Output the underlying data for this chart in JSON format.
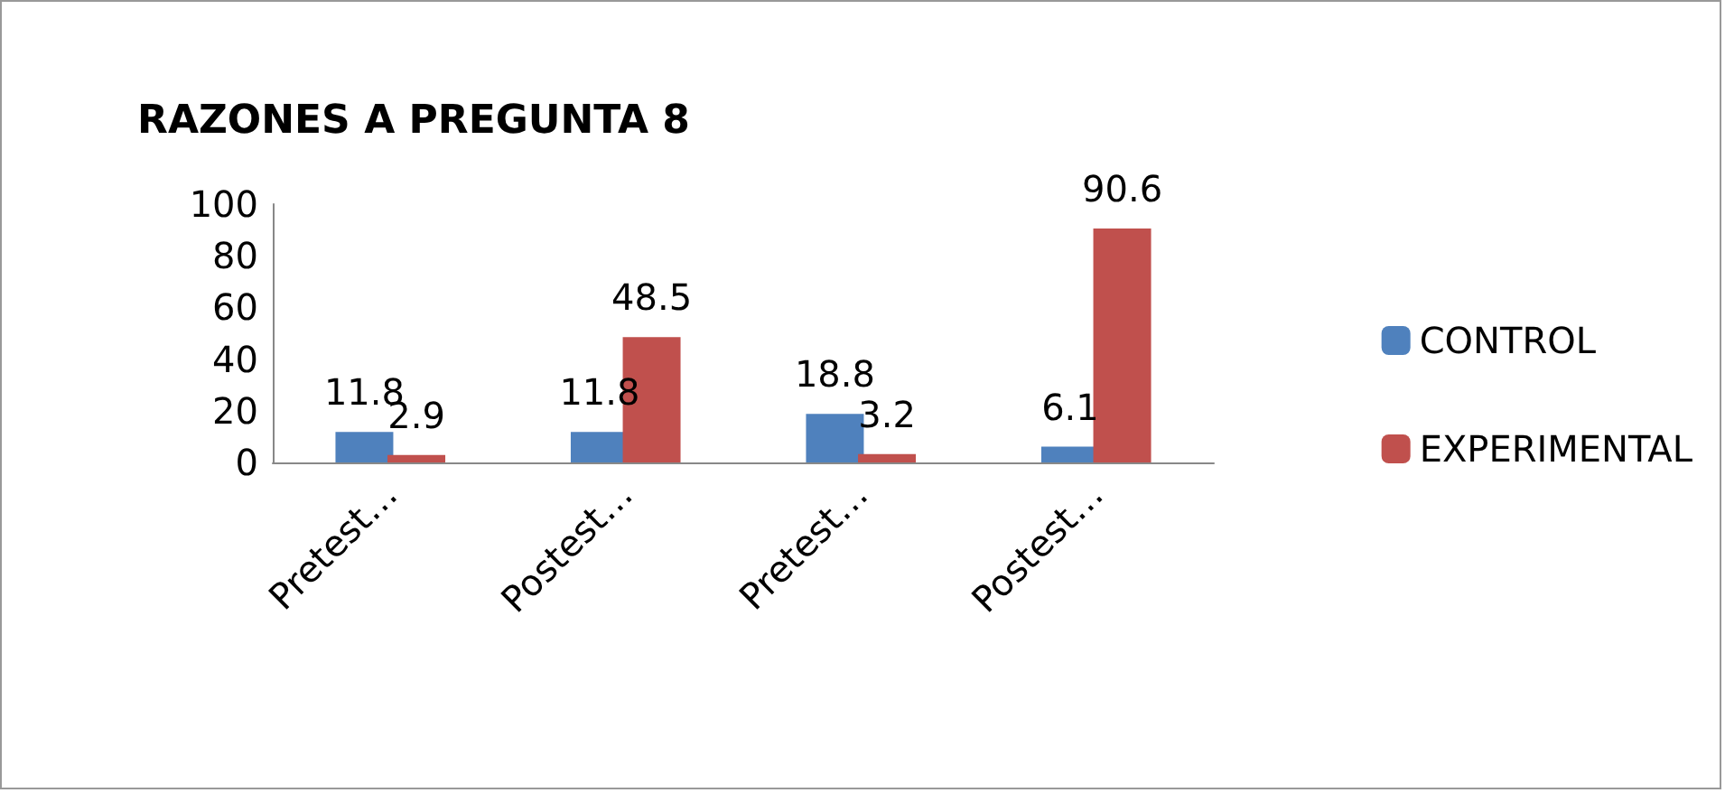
{
  "chart_data": {
    "type": "bar",
    "title": "RAZONES A PREGUNTA 8",
    "categories": [
      "Pretest…",
      "Postest…",
      "Pretest…",
      "Postest…"
    ],
    "series": [
      {
        "name": "CONTROL",
        "color": "#4f81bd",
        "values": [
          11.8,
          11.8,
          18.8,
          6.1
        ]
      },
      {
        "name": "EXPERIMENTAL",
        "color": "#c0504d",
        "values": [
          2.9,
          48.5,
          3.2,
          90.6
        ]
      }
    ],
    "ylim": [
      0,
      100
    ],
    "yticks": [
      0,
      20,
      40,
      60,
      80,
      100
    ],
    "grid": false,
    "legend": "right",
    "data_labels": true
  }
}
